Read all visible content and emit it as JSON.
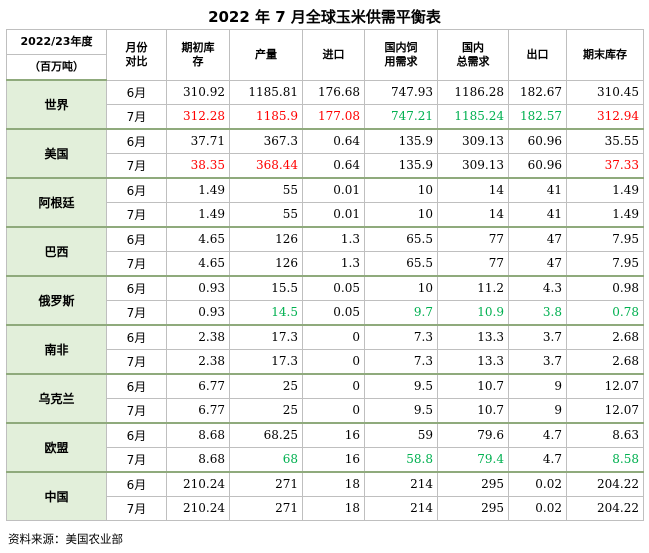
{
  "title": "2022 年 7 月全球玉米供需平衡表",
  "header": {
    "col0_line1": "2022/23年度",
    "col0_line2": "（百万吨）",
    "col1_line1": "月份",
    "col1_line2": "对比",
    "col2_line1": "期初库",
    "col2_line2": "存",
    "col3": "产量",
    "col4": "进口",
    "col5_line1": "国内饲",
    "col5_line2": "用需求",
    "col6_line1": "国内",
    "col6_line2": "总需求",
    "col7": "出口",
    "col8": "期末库存"
  },
  "colors": {
    "increase": "#ff0000",
    "decrease": "#00b050",
    "country_bg": "#e2efda"
  },
  "rows": [
    {
      "country": "世界",
      "jun": {
        "month": "6月",
        "values": [
          "310.92",
          "1185.81",
          "176.68",
          "747.93",
          "1186.28",
          "182.67",
          "310.45"
        ],
        "colors": [
          "",
          "",
          "",
          "",
          "",
          "",
          ""
        ]
      },
      "jul": {
        "month": "7月",
        "values": [
          "312.28",
          "1185.9",
          "177.08",
          "747.21",
          "1185.24",
          "182.57",
          "312.94"
        ],
        "colors": [
          "red",
          "red",
          "red",
          "green",
          "green",
          "green",
          "red"
        ]
      }
    },
    {
      "country": "美国",
      "jun": {
        "month": "6月",
        "values": [
          "37.71",
          "367.3",
          "0.64",
          "135.9",
          "309.13",
          "60.96",
          "35.55"
        ],
        "colors": [
          "",
          "",
          "",
          "",
          "",
          "",
          ""
        ]
      },
      "jul": {
        "month": "7月",
        "values": [
          "38.35",
          "368.44",
          "0.64",
          "135.9",
          "309.13",
          "60.96",
          "37.33"
        ],
        "colors": [
          "red",
          "red",
          "",
          "",
          "",
          "",
          "red"
        ]
      }
    },
    {
      "country": "阿根廷",
      "jun": {
        "month": "6月",
        "values": [
          "1.49",
          "55",
          "0.01",
          "10",
          "14",
          "41",
          "1.49"
        ],
        "colors": [
          "",
          "",
          "",
          "",
          "",
          "",
          ""
        ]
      },
      "jul": {
        "month": "7月",
        "values": [
          "1.49",
          "55",
          "0.01",
          "10",
          "14",
          "41",
          "1.49"
        ],
        "colors": [
          "",
          "",
          "",
          "",
          "",
          "",
          ""
        ]
      }
    },
    {
      "country": "巴西",
      "jun": {
        "month": "6月",
        "values": [
          "4.65",
          "126",
          "1.3",
          "65.5",
          "77",
          "47",
          "7.95"
        ],
        "colors": [
          "",
          "",
          "",
          "",
          "",
          "",
          ""
        ]
      },
      "jul": {
        "month": "7月",
        "values": [
          "4.65",
          "126",
          "1.3",
          "65.5",
          "77",
          "47",
          "7.95"
        ],
        "colors": [
          "",
          "",
          "",
          "",
          "",
          "",
          ""
        ]
      }
    },
    {
      "country": "俄罗斯",
      "jun": {
        "month": "6月",
        "values": [
          "0.93",
          "15.5",
          "0.05",
          "10",
          "11.2",
          "4.3",
          "0.98"
        ],
        "colors": [
          "",
          "",
          "",
          "",
          "",
          "",
          ""
        ]
      },
      "jul": {
        "month": "7月",
        "values": [
          "0.93",
          "14.5",
          "0.05",
          "9.7",
          "10.9",
          "3.8",
          "0.78"
        ],
        "colors": [
          "",
          "green",
          "",
          "green",
          "green",
          "green",
          "green"
        ]
      }
    },
    {
      "country": "南非",
      "jun": {
        "month": "6月",
        "values": [
          "2.38",
          "17.3",
          "0",
          "7.3",
          "13.3",
          "3.7",
          "2.68"
        ],
        "colors": [
          "",
          "",
          "",
          "",
          "",
          "",
          ""
        ]
      },
      "jul": {
        "month": "7月",
        "values": [
          "2.38",
          "17.3",
          "0",
          "7.3",
          "13.3",
          "3.7",
          "2.68"
        ],
        "colors": [
          "",
          "",
          "",
          "",
          "",
          "",
          ""
        ]
      }
    },
    {
      "country": "乌克兰",
      "jun": {
        "month": "6月",
        "values": [
          "6.77",
          "25",
          "0",
          "9.5",
          "10.7",
          "9",
          "12.07"
        ],
        "colors": [
          "",
          "",
          "",
          "",
          "",
          "",
          ""
        ]
      },
      "jul": {
        "month": "7月",
        "values": [
          "6.77",
          "25",
          "0",
          "9.5",
          "10.7",
          "9",
          "12.07"
        ],
        "colors": [
          "",
          "",
          "",
          "",
          "",
          "",
          ""
        ]
      }
    },
    {
      "country": "欧盟",
      "jun": {
        "month": "6月",
        "values": [
          "8.68",
          "68.25",
          "16",
          "59",
          "79.6",
          "4.7",
          "8.63"
        ],
        "colors": [
          "",
          "",
          "",
          "",
          "",
          "",
          ""
        ]
      },
      "jul": {
        "month": "7月",
        "values": [
          "8.68",
          "68",
          "16",
          "58.8",
          "79.4",
          "4.7",
          "8.58"
        ],
        "colors": [
          "",
          "green",
          "",
          "green",
          "green",
          "",
          "green"
        ]
      }
    },
    {
      "country": "中国",
      "jun": {
        "month": "6月",
        "values": [
          "210.24",
          "271",
          "18",
          "214",
          "295",
          "0.02",
          "204.22"
        ],
        "colors": [
          "",
          "",
          "",
          "",
          "",
          "",
          ""
        ]
      },
      "jul": {
        "month": "7月",
        "values": [
          "210.24",
          "271",
          "18",
          "214",
          "295",
          "0.02",
          "204.22"
        ],
        "colors": [
          "",
          "",
          "",
          "",
          "",
          "",
          ""
        ]
      }
    }
  ],
  "source": "资料来源：美国农业部"
}
